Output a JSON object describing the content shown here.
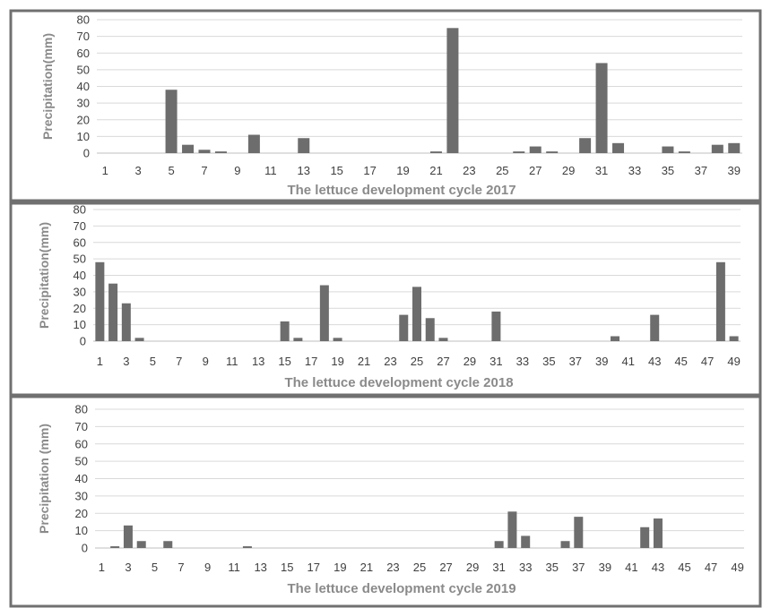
{
  "colors": {
    "bar": "#6d6d6d",
    "frame": "#707070",
    "grid": "#d9d9d9",
    "label": "#8a8a8a"
  },
  "chart_data": [
    {
      "type": "bar",
      "title": "",
      "xlabel": "The lettuce development cycle 2017",
      "ylabel": "Precipitation(mm)",
      "ylim": [
        0,
        80
      ],
      "yticks": [
        0,
        10,
        20,
        30,
        40,
        50,
        60,
        70,
        80
      ],
      "x_tick_labels": [
        "1",
        "3",
        "5",
        "7",
        "9",
        "11",
        "13",
        "15",
        "17",
        "19",
        "21",
        "23",
        "25",
        "27",
        "29",
        "31",
        "33",
        "35",
        "37",
        "39"
      ],
      "grid": true,
      "legend": "none",
      "x": [
        1,
        2,
        3,
        4,
        5,
        6,
        7,
        8,
        9,
        10,
        11,
        12,
        13,
        14,
        15,
        16,
        17,
        18,
        19,
        20,
        21,
        22,
        23,
        24,
        25,
        26,
        27,
        28,
        29,
        30,
        31,
        32,
        33,
        34,
        35,
        36,
        37,
        38,
        39
      ],
      "values": [
        0,
        0,
        0,
        0,
        38,
        5,
        2,
        1,
        0,
        11,
        0,
        0,
        9,
        0,
        0,
        0,
        0,
        0,
        0,
        0,
        1,
        75,
        0,
        0,
        0,
        1,
        4,
        1,
        0,
        9,
        54,
        6,
        0,
        0,
        4,
        1,
        0,
        5,
        6
      ]
    },
    {
      "type": "bar",
      "title": "",
      "xlabel": "The lettuce development cycle 2018",
      "ylabel": "Precipitation(mm)",
      "ylim": [
        0,
        80
      ],
      "yticks": [
        0,
        10,
        20,
        30,
        40,
        50,
        60,
        70,
        80
      ],
      "x_tick_labels": [
        "1",
        "3",
        "5",
        "7",
        "9",
        "11",
        "13",
        "15",
        "17",
        "19",
        "21",
        "23",
        "25",
        "27",
        "29",
        "31",
        "33",
        "35",
        "37",
        "39",
        "41",
        "43",
        "45",
        "47",
        "49"
      ],
      "grid": true,
      "legend": "none",
      "x": [
        1,
        2,
        3,
        4,
        5,
        6,
        7,
        8,
        9,
        10,
        11,
        12,
        13,
        14,
        15,
        16,
        17,
        18,
        19,
        20,
        21,
        22,
        23,
        24,
        25,
        26,
        27,
        28,
        29,
        30,
        31,
        32,
        33,
        34,
        35,
        36,
        37,
        38,
        39,
        40,
        41,
        42,
        43,
        44,
        45,
        46,
        47,
        48,
        49
      ],
      "values": [
        48,
        35,
        23,
        2,
        0,
        0,
        0,
        0,
        0,
        0,
        0,
        0,
        0,
        0,
        12,
        2,
        0,
        34,
        2,
        0,
        0,
        0,
        0,
        16,
        33,
        14,
        2,
        0,
        0,
        0,
        18,
        0,
        0,
        0,
        0,
        0,
        0,
        0,
        0,
        3,
        0,
        0,
        16,
        0,
        0,
        0,
        0,
        48,
        3
      ]
    },
    {
      "type": "bar",
      "title": "",
      "xlabel": "The lettuce development cycle 2019",
      "ylabel": "Precipitation (mm)",
      "ylim": [
        0,
        80
      ],
      "yticks": [
        0,
        10,
        20,
        30,
        40,
        50,
        60,
        70,
        80
      ],
      "x_tick_labels": [
        "1",
        "3",
        "5",
        "7",
        "9",
        "11",
        "13",
        "15",
        "17",
        "19",
        "21",
        "23",
        "25",
        "27",
        "29",
        "31",
        "33",
        "35",
        "37",
        "39",
        "41",
        "43",
        "45",
        "47",
        "49"
      ],
      "grid": true,
      "legend": "none",
      "x": [
        1,
        2,
        3,
        4,
        5,
        6,
        7,
        8,
        9,
        10,
        11,
        12,
        13,
        14,
        15,
        16,
        17,
        18,
        19,
        20,
        21,
        22,
        23,
        24,
        25,
        26,
        27,
        28,
        29,
        30,
        31,
        32,
        33,
        34,
        35,
        36,
        37,
        38,
        39,
        40,
        41,
        42,
        43,
        44,
        45,
        46,
        47,
        48,
        49
      ],
      "values": [
        0,
        1,
        13,
        4,
        0,
        4,
        0,
        0,
        0,
        0,
        0,
        1,
        0,
        0,
        0,
        0,
        0,
        0,
        0,
        0,
        0,
        0,
        0,
        0,
        0,
        0,
        0,
        0,
        0,
        0,
        4,
        21,
        7,
        0,
        0,
        4,
        18,
        0,
        0,
        0,
        0,
        12,
        17,
        0,
        0,
        0,
        0,
        0,
        0
      ]
    }
  ]
}
